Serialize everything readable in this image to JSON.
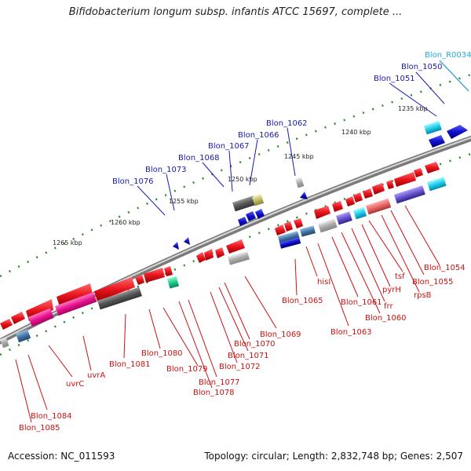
{
  "title": "Bifidobacterium longum subsp. infantis ATCC 15697, complete ...",
  "accession_text": "Accession: NC_011593",
  "summary_text": "Topology: circular; Length: 2,832,748 bp; Genes: 2,507",
  "ruler_labels": [
    "1265 kbp",
    "1260 kbp",
    "1255 kbp",
    "1250 kbp",
    "1245 kbp",
    "1240 kbp",
    "1235 kbp"
  ],
  "top_labels": [
    {
      "text": "Blon_R0034",
      "color": "#22aadd"
    },
    {
      "text": "Blon_1050",
      "color": "#1a1aaa"
    },
    {
      "text": "Blon_1051",
      "color": "#1a1aaa"
    },
    {
      "text": "Blon_1062",
      "color": "#1a1aaa"
    },
    {
      "text": "Blon_1066",
      "color": "#1a1aaa"
    },
    {
      "text": "Blon_1067",
      "color": "#1a1aaa"
    },
    {
      "text": "Blon_1068",
      "color": "#1a1aaa"
    },
    {
      "text": "Blon_1073",
      "color": "#1a1aaa"
    },
    {
      "text": "Blon_1076",
      "color": "#1a1aaa"
    }
  ],
  "bottom_labels": [
    "Blon_1054",
    "Blon_1055",
    "rpsB",
    "tsf",
    "pyrH",
    "frr",
    "Blon_1060",
    "Blon_1061",
    "Blon_1063",
    "hisI",
    "Blon_1065",
    "Blon_1069",
    "Blon_1070",
    "Blon_1071",
    "Blon_1072",
    "Blon_1077",
    "Blon_1078",
    "Blon_1079",
    "Blon_1080",
    "Blon_1081",
    "uvrA",
    "uvrC",
    "Blon_1084",
    "Blon_1085"
  ],
  "colors": {
    "forward_gene": "#e8141e",
    "reverse_gene": "#1010cc",
    "rrna": "#22aadd",
    "backbone": "#8a8a8a",
    "tick": "#2a8a2a",
    "bottom_label": "#cc1111"
  }
}
